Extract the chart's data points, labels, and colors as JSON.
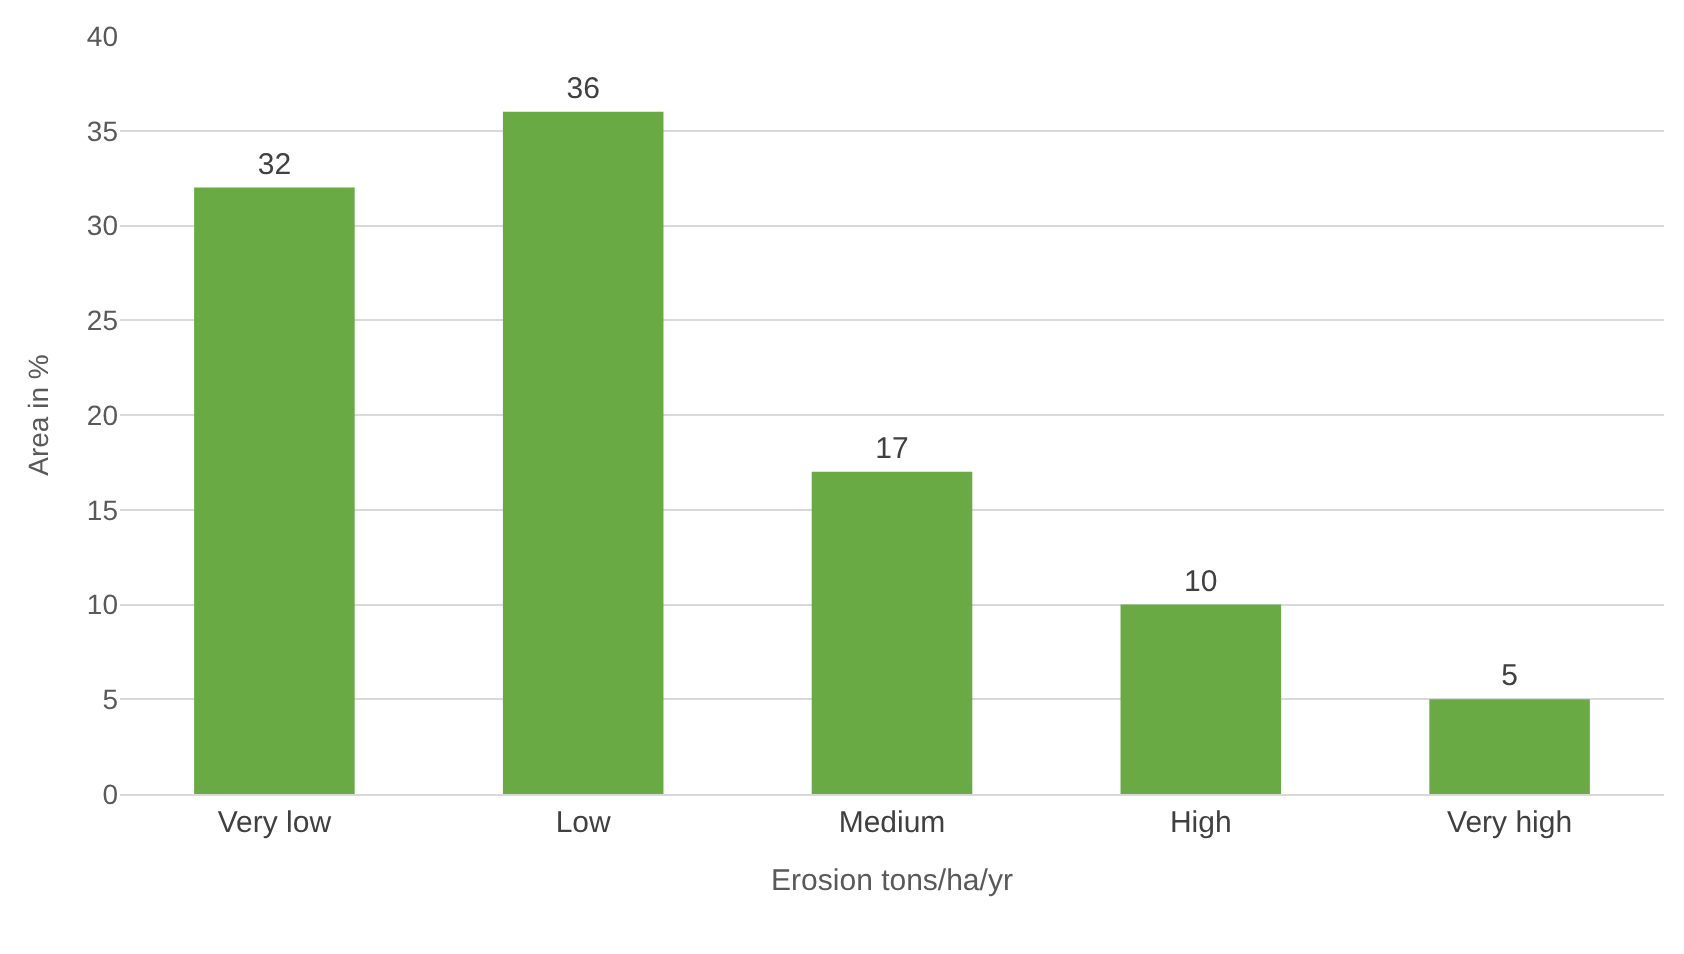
{
  "chart_data": {
    "type": "bar",
    "categories": [
      "Very low",
      "Low",
      "Medium",
      "High",
      "Very high"
    ],
    "values": [
      32,
      36,
      17,
      10,
      5
    ],
    "color": "#6aaa45",
    "xlabel": "Erosion tons/ha/yr",
    "ylabel": "Area in %",
    "ylim": [
      0,
      40
    ],
    "yticks": [
      0,
      5,
      10,
      15,
      20,
      25,
      30,
      35,
      40
    ],
    "grid": "y",
    "data_labels": true
  }
}
